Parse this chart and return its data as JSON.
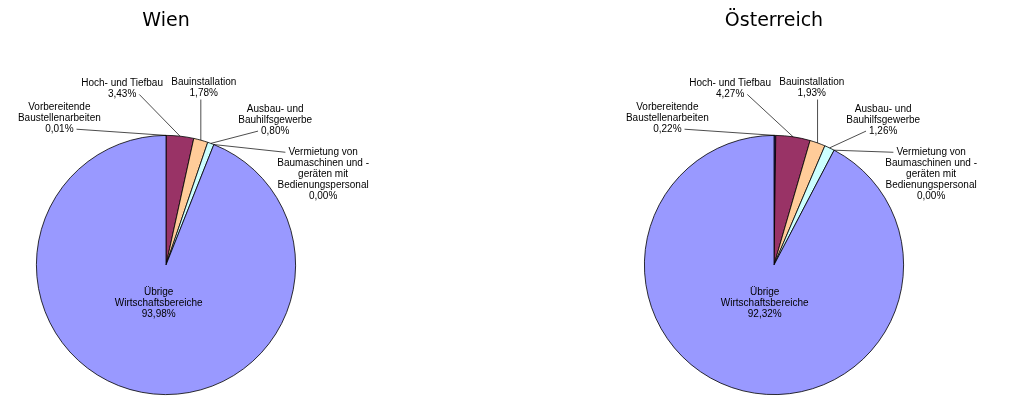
{
  "chart_data": [
    {
      "type": "pie",
      "title": "Wien",
      "categories": [
        "Vorbereitende Baustellenarbeiten",
        "Hoch- und Tiefbau",
        "Bauinstallation",
        "Ausbau- und Bauhilfsgewerbe",
        "Vermietung von Baumaschinen und - geräten mit Bedienungspersonal",
        "Übrige Wirtschaftsbereiche"
      ],
      "values": [
        0.01,
        3.43,
        1.78,
        0.8,
        0,
        93.98
      ],
      "value_labels": [
        "0,01%",
        "3,43%",
        "1,78%",
        "0,80%",
        "0,00%",
        "93,98%"
      ],
      "colors": [
        "#333399",
        "#993366",
        "#ffcc99",
        "#ccffff",
        "#000080",
        "#9999ff"
      ],
      "legend": false
    },
    {
      "type": "pie",
      "title": "Österreich",
      "categories": [
        "Vorbereitende Baustellenarbeiten",
        "Hoch- und Tiefbau",
        "Bauinstallation",
        "Ausbau- und Bauhilfsgewerbe",
        "Vermietung von Baumaschinen und - geräten mit Bedienungspersonal",
        "Übrige Wirtschaftsbereiche"
      ],
      "values": [
        0.22,
        4.27,
        1.93,
        1.26,
        0,
        92.32
      ],
      "value_labels": [
        "0,22%",
        "4,27%",
        "1,93%",
        "1,26%",
        "0,00%",
        "92,32%"
      ],
      "colors": [
        "#333399",
        "#993366",
        "#ffcc99",
        "#ccffff",
        "#000080",
        "#9999ff"
      ],
      "legend": false
    }
  ]
}
